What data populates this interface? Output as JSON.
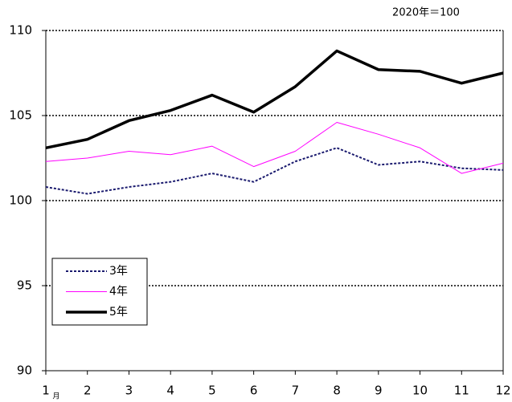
{
  "chart_data": {
    "type": "line",
    "annotation": "2020年＝100",
    "x_unit": "月",
    "categories": [
      "1",
      "2",
      "3",
      "4",
      "5",
      "6",
      "7",
      "8",
      "9",
      "10",
      "11",
      "12"
    ],
    "series": [
      {
        "name": "3年",
        "color": "#1a1a6e",
        "style": "dotted",
        "values": [
          100.8,
          100.4,
          100.8,
          101.1,
          101.6,
          101.1,
          102.3,
          103.1,
          102.1,
          102.3,
          101.9,
          101.8
        ]
      },
      {
        "name": "4年",
        "color": "#ff00ff",
        "style": "thin",
        "values": [
          102.3,
          102.5,
          102.9,
          102.7,
          103.2,
          102.0,
          102.9,
          104.6,
          103.9,
          103.1,
          101.6,
          102.2
        ]
      },
      {
        "name": "5年",
        "color": "#000000",
        "style": "thick",
        "values": [
          103.1,
          103.6,
          104.7,
          105.3,
          106.2,
          105.2,
          106.7,
          108.8,
          107.7,
          107.6,
          106.9,
          107.5
        ]
      }
    ],
    "ylim": [
      90,
      110
    ],
    "yticks": [
      90,
      95,
      100,
      105,
      110
    ],
    "grid": true,
    "legend": "lower-left"
  }
}
